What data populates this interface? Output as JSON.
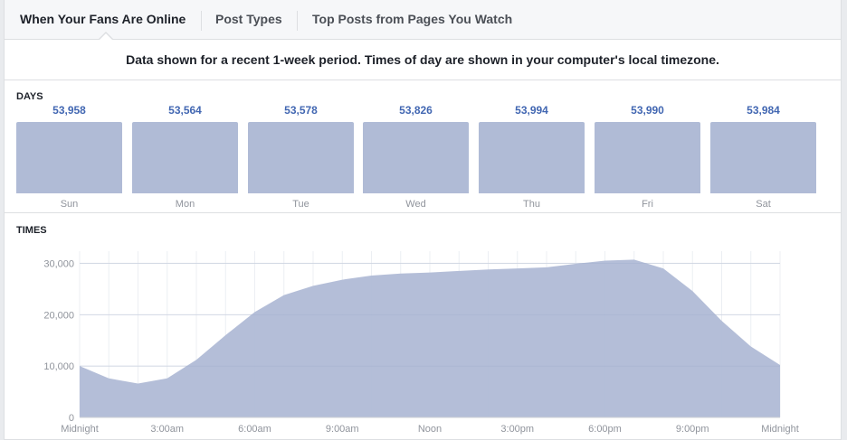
{
  "tabs": [
    {
      "label": "When Your Fans Are Online",
      "active": true
    },
    {
      "label": "Post Types",
      "active": false
    },
    {
      "label": "Top Posts from Pages You Watch",
      "active": false
    }
  ],
  "notice": "Data shown for a recent 1-week period. Times of day are shown in your computer's local timezone.",
  "days_section": {
    "title": "DAYS",
    "days": [
      {
        "label": "Sun",
        "value": "53,958"
      },
      {
        "label": "Mon",
        "value": "53,564"
      },
      {
        "label": "Tue",
        "value": "53,578"
      },
      {
        "label": "Wed",
        "value": "53,826"
      },
      {
        "label": "Thu",
        "value": "53,994"
      },
      {
        "label": "Fri",
        "value": "53,990"
      },
      {
        "label": "Sat",
        "value": "53,984"
      }
    ]
  },
  "times_section": {
    "title": "TIMES"
  },
  "colors": {
    "accent": "#4267b2",
    "bar": "#b0bbd6",
    "area": "#b0bbd6"
  },
  "chart_data": {
    "type": "area",
    "title": "TIMES",
    "x": [
      0,
      1,
      2,
      3,
      4,
      5,
      6,
      7,
      8,
      9,
      10,
      11,
      12,
      13,
      14,
      15,
      16,
      17,
      18,
      19,
      20,
      21,
      22,
      23,
      24
    ],
    "xticks": [
      {
        "hour": 0,
        "label": "Midnight"
      },
      {
        "hour": 3,
        "label": "3:00am"
      },
      {
        "hour": 6,
        "label": "6:00am"
      },
      {
        "hour": 9,
        "label": "9:00am"
      },
      {
        "hour": 12,
        "label": "Noon"
      },
      {
        "hour": 15,
        "label": "3:00pm"
      },
      {
        "hour": 18,
        "label": "6:00pm"
      },
      {
        "hour": 21,
        "label": "9:00pm"
      },
      {
        "hour": 24,
        "label": "Midnight"
      }
    ],
    "yticks": [
      {
        "value": 0,
        "label": "0"
      },
      {
        "value": 10000,
        "label": "10,000"
      },
      {
        "value": 20000,
        "label": "20,000"
      },
      {
        "value": 30000,
        "label": "30,000"
      }
    ],
    "ylim": [
      0,
      32000
    ],
    "values": [
      10000,
      7600,
      6600,
      7600,
      11200,
      16000,
      20500,
      23800,
      25600,
      26800,
      27600,
      28000,
      28200,
      28500,
      28800,
      29000,
      29200,
      29900,
      30500,
      30700,
      29000,
      24600,
      18800,
      13800,
      10200
    ],
    "grid": true
  }
}
